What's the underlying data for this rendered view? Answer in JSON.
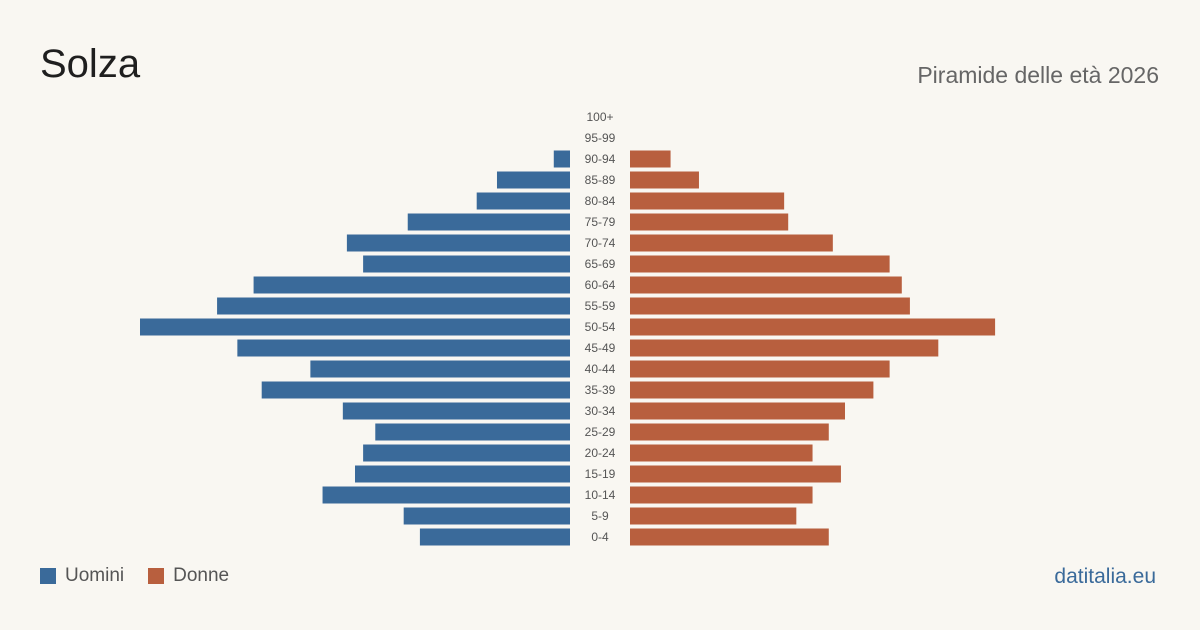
{
  "header": {
    "title": "Solza",
    "subtitle": "Piramide delle età 2026"
  },
  "legend": {
    "men_label": "Uomini",
    "women_label": "Donne"
  },
  "source": "datitalia.eu",
  "colors": {
    "men": "#3a6a9a",
    "women": "#b85f3e",
    "background": "#f9f7f2"
  },
  "chart_data": {
    "type": "bar",
    "orientation": "horizontal-pyramid",
    "title": "Piramide delle età 2026",
    "categories": [
      "100+",
      "95-99",
      "90-94",
      "85-89",
      "80-84",
      "75-79",
      "70-74",
      "65-69",
      "60-64",
      "55-59",
      "50-54",
      "45-49",
      "40-44",
      "35-39",
      "30-34",
      "25-29",
      "20-24",
      "15-19",
      "10-14",
      "5-9",
      "0-4"
    ],
    "series": [
      {
        "name": "Uomini",
        "values": [
          0,
          0,
          4,
          18,
          23,
          40,
          55,
          51,
          78,
          87,
          106,
          82,
          64,
          76,
          56,
          48,
          51,
          53,
          61,
          41,
          37
        ]
      },
      {
        "name": "Donne",
        "values": [
          0,
          0,
          10,
          17,
          38,
          39,
          50,
          64,
          67,
          69,
          90,
          76,
          64,
          60,
          53,
          49,
          45,
          52,
          45,
          41,
          49
        ]
      }
    ],
    "xlim": [
      0,
      106
    ],
    "grid": false,
    "legend_position": "bottom-left"
  }
}
